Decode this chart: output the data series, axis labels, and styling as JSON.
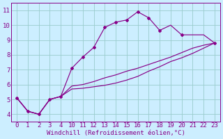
{
  "bg_color": "#cceeff",
  "line_color": "#880088",
  "grid_color": "#99cccc",
  "xlabel": "Windchill (Refroidissement éolien,°C)",
  "xlim": [
    -0.5,
    18.5
  ],
  "ylim": [
    3.5,
    11.5
  ],
  "xtick_labels": [
    "0",
    "1",
    "2",
    "3",
    "4",
    "10",
    "11",
    "12",
    "13",
    "14",
    "15",
    "16",
    "17",
    "18",
    "19",
    "20",
    "21",
    "22",
    "23"
  ],
  "ytick_labels": [
    "4",
    "5",
    "6",
    "7",
    "8",
    "9",
    "10",
    "11"
  ],
  "ytick_vals": [
    4,
    5,
    6,
    7,
    8,
    9,
    10,
    11
  ],
  "line1_idx": [
    0,
    1,
    2,
    3,
    4,
    5,
    6,
    7,
    8,
    9,
    10,
    11,
    12,
    13,
    14,
    15,
    16,
    17,
    18
  ],
  "line1_y": [
    5.1,
    4.2,
    4.0,
    5.0,
    5.2,
    7.1,
    7.85,
    8.5,
    9.85,
    10.2,
    10.35,
    10.9,
    10.5,
    9.65,
    10.0,
    9.35,
    9.35,
    9.35,
    8.8
  ],
  "line2_idx": [
    0,
    1,
    2,
    3,
    4,
    5,
    6,
    7,
    8,
    9,
    10,
    11,
    12,
    13,
    14,
    15,
    16,
    17,
    18
  ],
  "line2_y": [
    5.1,
    4.2,
    4.0,
    5.0,
    5.2,
    5.9,
    6.0,
    6.2,
    6.45,
    6.65,
    6.9,
    7.1,
    7.35,
    7.6,
    7.85,
    8.15,
    8.45,
    8.65,
    8.8
  ],
  "line3_idx": [
    0,
    1,
    2,
    3,
    4,
    5,
    6,
    7,
    8,
    9,
    10,
    11,
    12,
    13,
    14,
    15,
    16,
    17,
    18
  ],
  "line3_y": [
    5.1,
    4.2,
    4.0,
    5.0,
    5.2,
    5.7,
    5.75,
    5.85,
    5.95,
    6.1,
    6.3,
    6.55,
    6.9,
    7.2,
    7.55,
    7.8,
    8.1,
    8.45,
    8.8
  ],
  "marker1_idx": [
    0,
    1,
    2,
    3,
    4,
    5,
    6,
    7,
    8,
    9,
    10,
    11,
    12,
    13,
    15,
    18
  ],
  "marker1_y": [
    5.1,
    4.2,
    4.0,
    5.0,
    5.2,
    7.1,
    7.85,
    8.5,
    9.85,
    10.2,
    10.35,
    10.9,
    10.5,
    9.65,
    9.35,
    8.8
  ],
  "font_size_xlabel": 6.5,
  "font_size_tick": 6.5
}
